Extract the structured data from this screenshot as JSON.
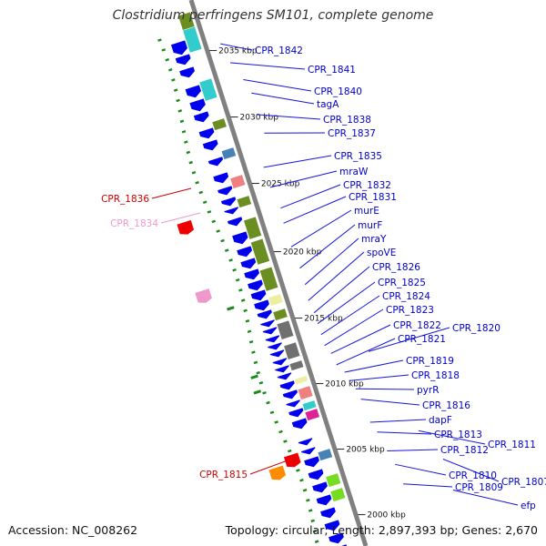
{
  "title": "Clostridium perfringens SM101, complete genome",
  "accession": "Accession: NC_008262",
  "topology": "Topology: circular; Length: 2,897,393 bp; Genes: 2,670",
  "colors": {
    "backbone": "#808080",
    "cds": "#0000ee",
    "label_default": "#0000cc",
    "leader_default": "#1515dd",
    "label_red": "#cc0000",
    "label_pink": "#ee99cc",
    "gc_dots": "#1a8a1a",
    "cog_olive": "#6b8e23",
    "cog_cyan": "#33cccc",
    "cog_gray": "#707070",
    "cog_pink": "#f08080",
    "cog_yellow": "#eeeea0",
    "cog_magenta": "#dd2299",
    "cog_steel": "#4682b4",
    "cog_green": "#77dd22",
    "rna_red": "#ee0000",
    "rna_orange": "#ff8c00"
  },
  "tick_labels": [
    "2035 kbp",
    "2030 kbp",
    "2025 kbp",
    "2020 kbp",
    "2015 kbp",
    "2010 kbp",
    "2005 kbp",
    "2000 kbp"
  ],
  "gene_labels": [
    "CPR_1842",
    "CPR_1841",
    "CPR_1840",
    "tagA",
    "CPR_1838",
    "CPR_1837",
    "CPR_1835",
    "mraW",
    "CPR_1832",
    "CPR_1831",
    "murE",
    "murF",
    "mraY",
    "spoVE",
    "CPR_1826",
    "CPR_1825",
    "CPR_1824",
    "CPR_1823",
    "CPR_1822",
    "CPR_1820",
    "CPR_1821",
    "CPR_1819",
    "CPR_1818",
    "pyrR",
    "CPR_1816",
    "dapF",
    "CPR_1813",
    "CPR_1811",
    "CPR_1812",
    "CPR_1810",
    "CPR_1807",
    "CPR_1809",
    "efp"
  ],
  "left_labels": [
    "CPR_1836",
    "CPR_1834",
    "CPR_1815"
  ],
  "icon": "circular-genome-map-zoomed-segment"
}
